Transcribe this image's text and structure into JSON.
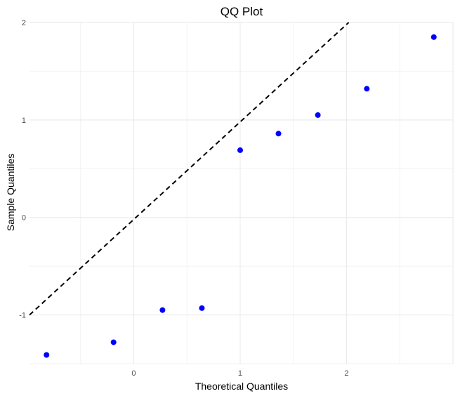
{
  "chart_data": {
    "type": "scatter",
    "title": "QQ Plot",
    "xlabel": "Theoretical Quantiles",
    "ylabel": "Sample Quantiles",
    "xlim": [
      -0.98,
      3.0
    ],
    "ylim": [
      -1.5,
      2.0
    ],
    "x_ticks": [
      0,
      1,
      2
    ],
    "y_ticks": [
      -1,
      0,
      1,
      2
    ],
    "grid": true,
    "legend": "none",
    "point_color": "#0000ff",
    "reference_line": {
      "style": "dashed",
      "color": "#000000",
      "x": [
        -0.98,
        2.02
      ],
      "y": [
        -1.0,
        2.0
      ]
    },
    "points": [
      {
        "x": -0.82,
        "y": -1.41
      },
      {
        "x": -0.19,
        "y": -1.28
      },
      {
        "x": 0.27,
        "y": -0.95
      },
      {
        "x": 0.64,
        "y": -0.93
      },
      {
        "x": 1.0,
        "y": 0.69
      },
      {
        "x": 1.36,
        "y": 0.86
      },
      {
        "x": 1.73,
        "y": 1.05
      },
      {
        "x": 2.19,
        "y": 1.32
      },
      {
        "x": 2.82,
        "y": 1.85
      }
    ]
  }
}
